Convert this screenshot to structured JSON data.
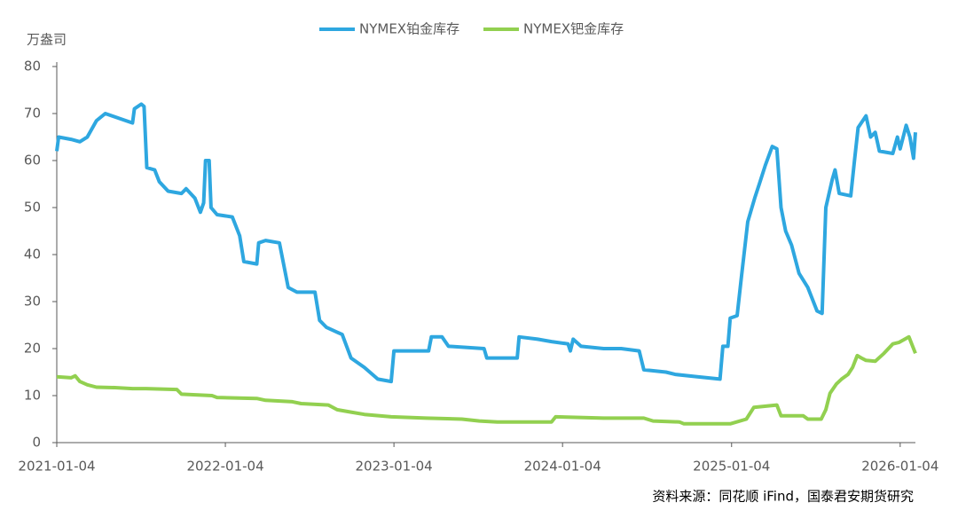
{
  "chart_data": {
    "type": "line",
    "y_label": "万盎司",
    "source": "资料来源：同花顺 iFind，国泰君安期货研究",
    "legend": "top",
    "xlim": [
      "2021-01-04",
      "2026-02-06"
    ],
    "xticks": [
      "2021-01-04",
      "2022-01-04",
      "2023-01-04",
      "2024-01-04",
      "2025-01-04",
      "2026-01-04"
    ],
    "ylim": [
      0,
      80
    ],
    "yticks": [
      0,
      10,
      20,
      30,
      40,
      50,
      60,
      70,
      80
    ],
    "grid": false,
    "series": [
      {
        "name": "NYMEX铂金库存",
        "color": "#2ea7e0",
        "x": [
          "2021-01-04",
          "2021-01-08",
          "2021-02-04",
          "2021-02-23",
          "2021-03-11",
          "2021-03-31",
          "2021-04-19",
          "2021-05-18",
          "2021-06-17",
          "2021-06-21",
          "2021-07-06",
          "2021-07-12",
          "2021-07-18",
          "2021-08-04",
          "2021-08-14",
          "2021-09-02",
          "2021-10-01",
          "2021-10-11",
          "2021-10-30",
          "2021-11-11",
          "2021-11-18",
          "2021-11-22",
          "2021-11-30",
          "2021-12-04",
          "2021-12-17",
          "2022-01-19",
          "2022-02-04",
          "2022-02-13",
          "2022-03-13",
          "2022-03-17",
          "2022-04-01",
          "2022-05-01",
          "2022-05-10",
          "2022-05-20",
          "2022-06-08",
          "2022-07-17",
          "2022-07-27",
          "2022-08-11",
          "2022-09-14",
          "2022-10-03",
          "2022-11-01",
          "2022-11-30",
          "2022-12-29",
          "2023-01-04",
          "2023-03-20",
          "2023-03-26",
          "2023-04-18",
          "2023-05-02",
          "2023-07-18",
          "2023-07-24",
          "2023-09-28",
          "2023-10-02",
          "2023-11-11",
          "2023-12-11",
          "2024-01-16",
          "2024-01-21",
          "2024-01-27",
          "2024-02-13",
          "2024-04-02",
          "2024-05-10",
          "2024-06-18",
          "2024-06-28",
          "2024-08-15",
          "2024-09-04",
          "2024-10-22",
          "2024-12-10",
          "2024-12-16",
          "2024-12-27",
          "2025-01-01",
          "2025-01-16",
          "2025-01-25",
          "2025-02-08",
          "2025-02-23",
          "2025-03-05",
          "2025-03-18",
          "2025-04-02",
          "2025-04-12",
          "2025-04-21",
          "2025-05-01",
          "2025-05-14",
          "2025-05-30",
          "2025-06-18",
          "2025-07-08",
          "2025-07-19",
          "2025-07-27",
          "2025-08-10",
          "2025-08-16",
          "2025-08-25",
          "2025-09-19",
          "2025-09-27",
          "2025-10-05",
          "2025-10-22",
          "2025-11-01",
          "2025-11-11",
          "2025-11-20",
          "2025-12-19",
          "2025-12-29",
          "2026-01-04",
          "2026-01-17",
          "2026-01-25",
          "2026-02-02",
          "2026-02-06"
        ],
        "values": [
          62,
          65,
          64.5,
          64,
          65,
          68.5,
          70,
          69,
          68,
          71,
          72,
          71.5,
          58.5,
          58,
          55.5,
          53.5,
          53,
          54,
          52,
          49,
          51,
          60,
          60,
          50,
          48.5,
          48,
          44,
          38.5,
          38,
          42.5,
          43,
          42.5,
          38,
          33,
          32,
          32,
          26,
          24.5,
          23,
          18,
          16,
          13.5,
          13,
          19.5,
          19.5,
          22.5,
          22.5,
          20.5,
          20,
          18,
          18,
          22.5,
          22,
          21.5,
          21,
          19.5,
          22,
          20.5,
          20,
          20,
          19.5,
          15.5,
          15,
          14.5,
          14,
          13.5,
          20.5,
          20.5,
          26.5,
          27,
          35,
          47,
          52,
          55,
          59,
          63,
          62.5,
          50,
          45,
          42,
          36,
          33,
          28,
          27.5,
          50,
          56,
          58,
          53,
          52.5,
          60,
          67,
          69.5,
          65,
          66,
          62,
          61.5,
          65,
          62.5,
          67.5,
          65,
          60.5,
          66
        ]
      },
      {
        "name": "NYMEX钯金库存",
        "color": "#92d050",
        "x": [
          "2021-01-04",
          "2021-02-04",
          "2021-02-13",
          "2021-02-23",
          "2021-03-11",
          "2021-03-31",
          "2021-05-10",
          "2021-06-17",
          "2021-07-16",
          "2021-09-21",
          "2021-10-01",
          "2021-12-06",
          "2021-12-17",
          "2022-03-13",
          "2022-04-01",
          "2022-05-29",
          "2022-06-17",
          "2022-08-15",
          "2022-09-03",
          "2022-10-03",
          "2022-11-01",
          "2022-12-29",
          "2023-03-15",
          "2023-05-31",
          "2023-07-08",
          "2023-08-16",
          "2023-12-11",
          "2023-12-20",
          "2024-04-02",
          "2024-06-28",
          "2024-07-18",
          "2024-09-13",
          "2024-09-23",
          "2025-01-01",
          "2025-02-05",
          "2025-02-21",
          "2025-04-12",
          "2025-04-21",
          "2025-06-08",
          "2025-06-18",
          "2025-07-17",
          "2025-07-27",
          "2025-08-05",
          "2025-08-19",
          "2025-08-30",
          "2025-09-13",
          "2025-09-23",
          "2025-10-03",
          "2025-10-12",
          "2025-10-22",
          "2025-11-11",
          "2025-11-30",
          "2025-12-19",
          "2026-01-01",
          "2026-01-14",
          "2026-01-23",
          "2026-01-29",
          "2026-02-06"
        ],
        "values": [
          14,
          13.8,
          14.2,
          13,
          12.3,
          11.8,
          11.7,
          11.5,
          11.5,
          11.3,
          10.3,
          10,
          9.6,
          9.4,
          9,
          8.7,
          8.3,
          8,
          7,
          6.5,
          6,
          5.5,
          5.2,
          5,
          4.6,
          4.4,
          4.4,
          5.5,
          5.2,
          5.2,
          4.6,
          4.4,
          4,
          4,
          5,
          7.5,
          8,
          5.7,
          5.7,
          5,
          5,
          7,
          10.5,
          12.5,
          13.5,
          14.5,
          16,
          18.5,
          18,
          17.5,
          17.3,
          19,
          21,
          21.3,
          22,
          22.5,
          21,
          19
        ]
      }
    ]
  }
}
